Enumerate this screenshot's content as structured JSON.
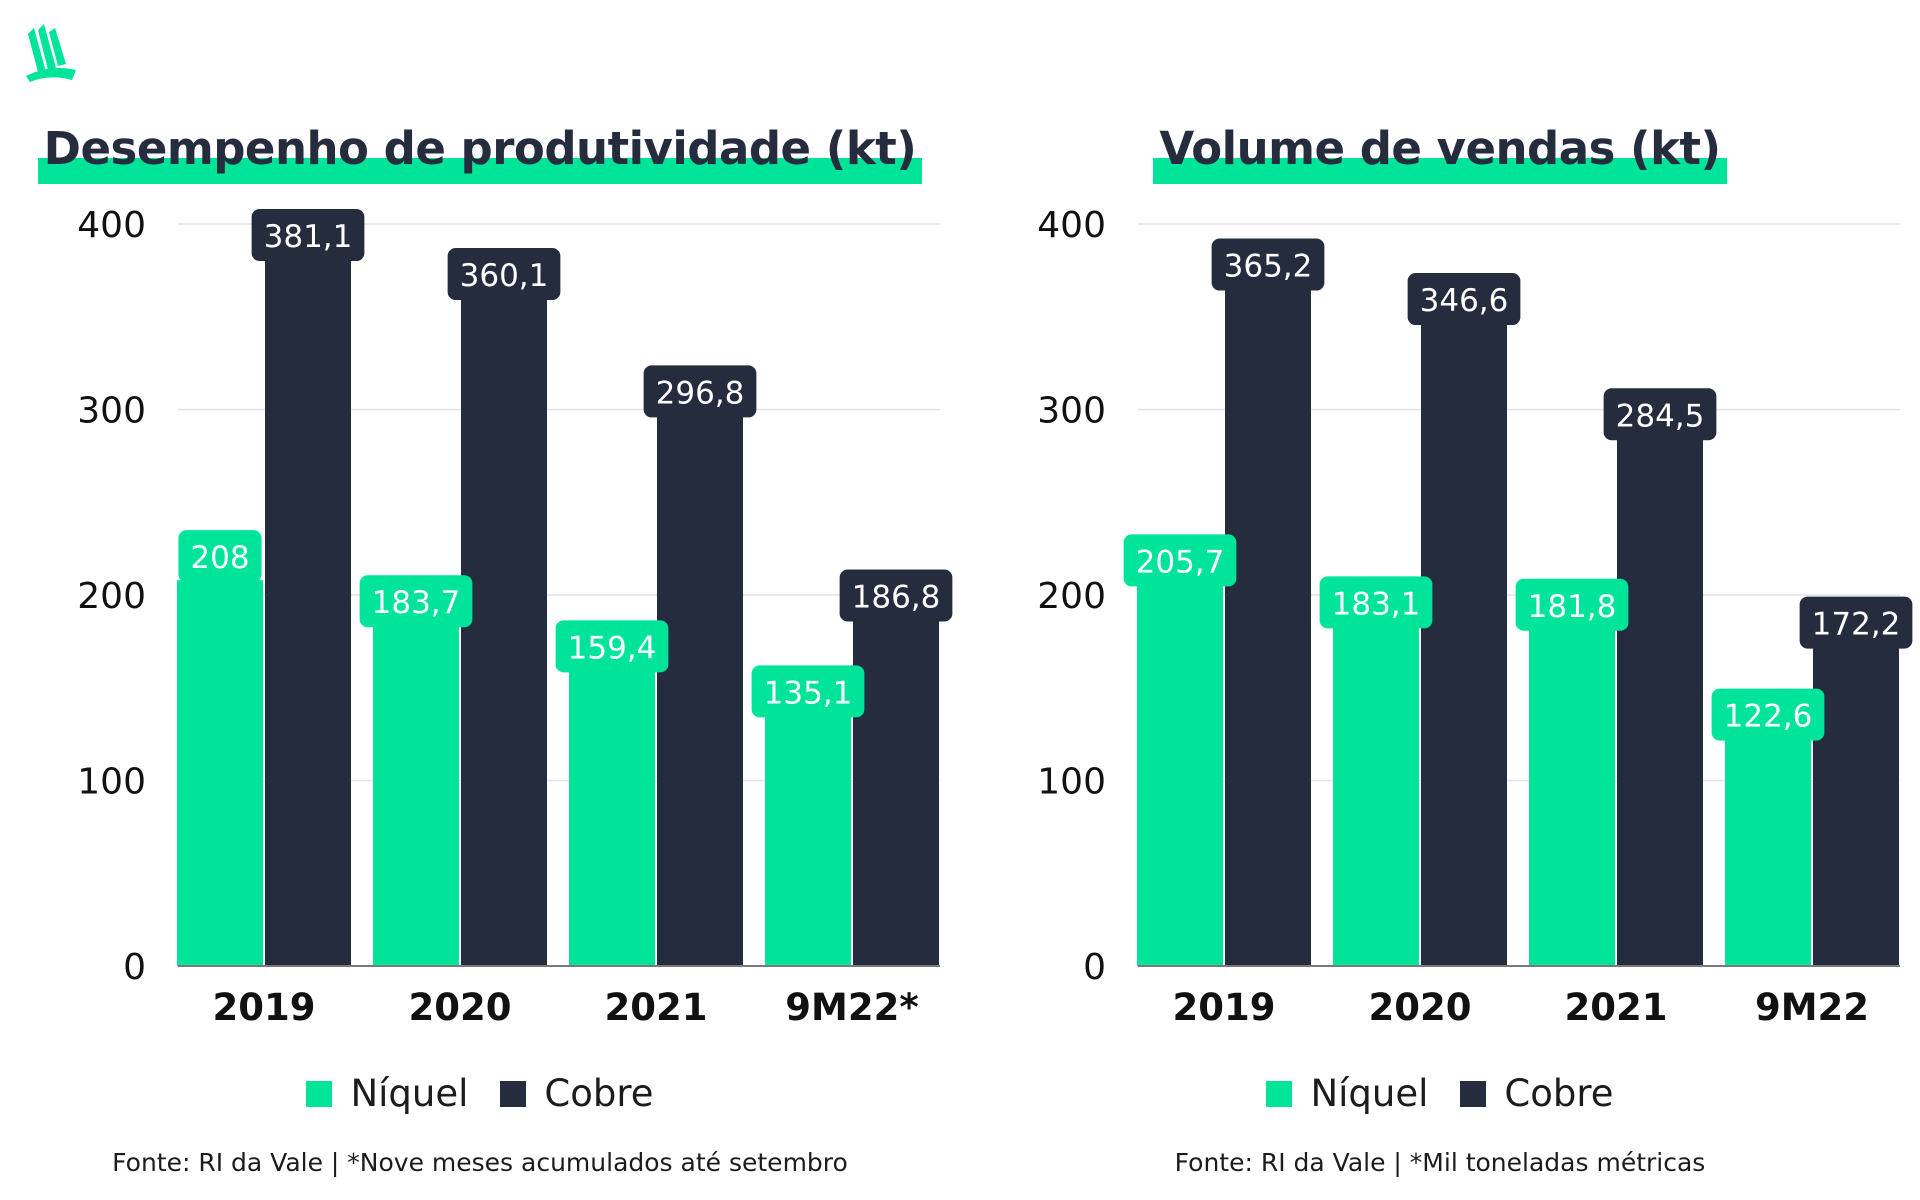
{
  "colors": {
    "niquel": "#00e49a",
    "cobre": "#252c3d",
    "grid": "#e2e2e2",
    "axis": "#7a7a7a"
  },
  "chart_data": [
    {
      "type": "bar",
      "title": "Desempenho de produtividade (kt)",
      "categories": [
        "2019",
        "2020",
        "2021",
        "9M22*"
      ],
      "series": [
        {
          "name": "Níquel",
          "values": [
            208,
            183.7,
            159.4,
            135.1
          ],
          "labels": [
            "208",
            "183,7",
            "159,4",
            "135,1"
          ]
        },
        {
          "name": "Cobre",
          "values": [
            381.1,
            360.1,
            296.8,
            186.8
          ],
          "labels": [
            "381,1",
            "360,1",
            "296,8",
            "186,8"
          ]
        }
      ],
      "yticks": [
        "0",
        "100",
        "200",
        "300",
        "400"
      ],
      "ylim": [
        0,
        400
      ],
      "grid": true,
      "legend": "bottom-center",
      "footnote": "Fonte: RI da Vale | *Nove meses acumulados até setembro"
    },
    {
      "type": "bar",
      "title": "Volume de vendas (kt)",
      "categories": [
        "2019",
        "2020",
        "2021",
        "9M22"
      ],
      "series": [
        {
          "name": "Níquel",
          "values": [
            205.7,
            183.1,
            181.8,
            122.6
          ],
          "labels": [
            "205,7",
            "183,1",
            "181,8",
            "122,6"
          ]
        },
        {
          "name": "Cobre",
          "values": [
            365.2,
            346.6,
            284.5,
            172.2
          ],
          "labels": [
            "365,2",
            "346,6",
            "284,5",
            "172,2"
          ]
        }
      ],
      "yticks": [
        "0",
        "100",
        "200",
        "300",
        "400"
      ],
      "ylim": [
        0,
        400
      ],
      "grid": true,
      "legend": "bottom-center",
      "footnote": "Fonte: RI da Vale | *Mil toneladas métricas"
    }
  ]
}
